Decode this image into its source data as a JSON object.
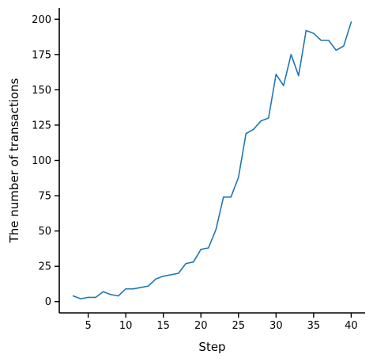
{
  "chart_data": {
    "type": "line",
    "title": "",
    "xlabel": "Step",
    "ylabel": "The number of transactions",
    "xlim": [
      1.15,
      41.85
    ],
    "ylim": [
      -8,
      208
    ],
    "xticks": [
      5,
      10,
      15,
      20,
      25,
      30,
      35,
      40
    ],
    "yticks": [
      0,
      25,
      50,
      75,
      100,
      125,
      150,
      175,
      200
    ],
    "grid": false,
    "legend": "none",
    "series": [
      {
        "color": "#1f77b4",
        "x": [
          3,
          4,
          5,
          6,
          7,
          8,
          9,
          10,
          11,
          12,
          13,
          14,
          15,
          16,
          17,
          18,
          19,
          20,
          21,
          22,
          23,
          24,
          25,
          26,
          27,
          28,
          29,
          30,
          31,
          32,
          33,
          34,
          35,
          36,
          37,
          38,
          39,
          40
        ],
        "y": [
          4,
          2,
          3,
          3,
          7,
          5,
          4,
          9,
          9,
          10,
          11,
          16,
          18,
          19,
          20,
          27,
          28,
          37,
          38,
          51,
          74,
          74,
          88,
          119,
          122,
          128,
          130,
          161,
          153,
          175,
          160,
          192,
          190,
          185,
          185,
          178,
          181,
          198
        ]
      }
    ]
  }
}
